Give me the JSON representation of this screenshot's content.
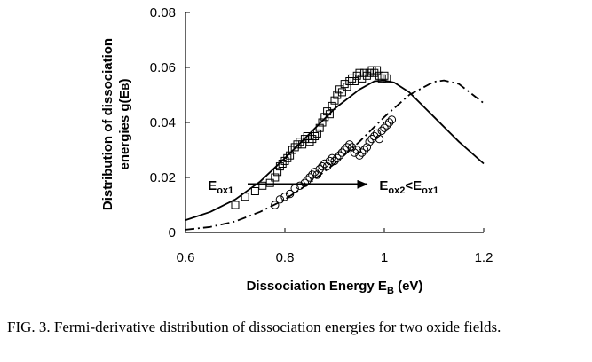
{
  "chart_data": {
    "type": "scatter",
    "xlabel": "Dissociation Energy E",
    "xlabel_sub": "B",
    "xlabel_unit": " (eV)",
    "ylabel_line1": "Distribution of dissociation",
    "ylabel_line2_prefix": "energies g(E",
    "ylabel_line2_sub": "B",
    "ylabel_line2_suffix": ")",
    "xlim": [
      0.6,
      1.2
    ],
    "ylim": [
      0,
      0.08
    ],
    "x_ticks": [
      "0.6",
      "0.8",
      "1",
      "1.2"
    ],
    "y_ticks": [
      "0",
      "0.02",
      "0.04",
      "0.06",
      "0.08"
    ],
    "x_tick_values": [
      0.6,
      0.8,
      1.0,
      1.2
    ],
    "y_tick_values": [
      0,
      0.02,
      0.04,
      0.06,
      0.08
    ],
    "grid": false,
    "legend": "none",
    "series": [
      {
        "marker": "square",
        "points": [
          [
            0.7,
            0.01
          ],
          [
            0.72,
            0.013
          ],
          [
            0.74,
            0.015
          ],
          [
            0.755,
            0.017
          ],
          [
            0.77,
            0.018
          ],
          [
            0.78,
            0.02
          ],
          [
            0.785,
            0.022
          ],
          [
            0.79,
            0.024
          ],
          [
            0.795,
            0.025
          ],
          [
            0.8,
            0.026
          ],
          [
            0.805,
            0.027
          ],
          [
            0.81,
            0.028
          ],
          [
            0.815,
            0.03
          ],
          [
            0.82,
            0.031
          ],
          [
            0.825,
            0.032
          ],
          [
            0.83,
            0.033
          ],
          [
            0.835,
            0.032
          ],
          [
            0.84,
            0.034
          ],
          [
            0.845,
            0.035
          ],
          [
            0.85,
            0.033
          ],
          [
            0.855,
            0.034
          ],
          [
            0.86,
            0.035
          ],
          [
            0.865,
            0.036
          ],
          [
            0.87,
            0.038
          ],
          [
            0.875,
            0.04
          ],
          [
            0.88,
            0.042
          ],
          [
            0.885,
            0.044
          ],
          [
            0.89,
            0.043
          ],
          [
            0.895,
            0.046
          ],
          [
            0.9,
            0.048
          ],
          [
            0.905,
            0.05
          ],
          [
            0.91,
            0.052
          ],
          [
            0.915,
            0.051
          ],
          [
            0.92,
            0.054
          ],
          [
            0.925,
            0.053
          ],
          [
            0.93,
            0.055
          ],
          [
            0.935,
            0.056
          ],
          [
            0.94,
            0.055
          ],
          [
            0.945,
            0.057
          ],
          [
            0.95,
            0.058
          ],
          [
            0.955,
            0.056
          ],
          [
            0.96,
            0.058
          ],
          [
            0.965,
            0.057
          ],
          [
            0.97,
            0.058
          ],
          [
            0.975,
            0.059
          ],
          [
            0.98,
            0.058
          ],
          [
            0.985,
            0.059
          ],
          [
            0.99,
            0.057
          ],
          [
            0.995,
            0.056
          ],
          [
            1.0,
            0.057
          ],
          [
            1.005,
            0.056
          ]
        ]
      },
      {
        "marker": "circle",
        "points": [
          [
            0.78,
            0.01
          ],
          [
            0.79,
            0.012
          ],
          [
            0.8,
            0.013
          ],
          [
            0.81,
            0.014
          ],
          [
            0.82,
            0.016
          ],
          [
            0.83,
            0.017
          ],
          [
            0.84,
            0.018
          ],
          [
            0.845,
            0.019
          ],
          [
            0.85,
            0.02
          ],
          [
            0.855,
            0.021
          ],
          [
            0.86,
            0.022
          ],
          [
            0.865,
            0.021
          ],
          [
            0.87,
            0.023
          ],
          [
            0.875,
            0.024
          ],
          [
            0.88,
            0.025
          ],
          [
            0.885,
            0.024
          ],
          [
            0.89,
            0.026
          ],
          [
            0.895,
            0.027
          ],
          [
            0.9,
            0.026
          ],
          [
            0.905,
            0.027
          ],
          [
            0.91,
            0.028
          ],
          [
            0.915,
            0.029
          ],
          [
            0.92,
            0.03
          ],
          [
            0.925,
            0.031
          ],
          [
            0.93,
            0.032
          ],
          [
            0.935,
            0.031
          ],
          [
            0.94,
            0.029
          ],
          [
            0.945,
            0.03
          ],
          [
            0.95,
            0.028
          ],
          [
            0.955,
            0.029
          ],
          [
            0.96,
            0.03
          ],
          [
            0.965,
            0.031
          ],
          [
            0.97,
            0.033
          ],
          [
            0.975,
            0.034
          ],
          [
            0.98,
            0.035
          ],
          [
            0.985,
            0.036
          ],
          [
            0.99,
            0.034
          ],
          [
            0.995,
            0.037
          ],
          [
            1.0,
            0.038
          ],
          [
            1.005,
            0.039
          ],
          [
            1.01,
            0.04
          ],
          [
            1.015,
            0.041
          ]
        ]
      },
      {
        "line_style": "solid",
        "points": [
          [
            0.6,
            0.0045
          ],
          [
            0.65,
            0.0075
          ],
          [
            0.7,
            0.012
          ],
          [
            0.75,
            0.0185
          ],
          [
            0.8,
            0.027
          ],
          [
            0.85,
            0.036
          ],
          [
            0.9,
            0.045
          ],
          [
            0.95,
            0.052
          ],
          [
            0.98,
            0.055
          ],
          [
            1.0,
            0.0553
          ],
          [
            1.02,
            0.0545
          ],
          [
            1.05,
            0.051
          ],
          [
            1.1,
            0.042
          ],
          [
            1.15,
            0.033
          ],
          [
            1.2,
            0.025
          ]
        ]
      },
      {
        "line_style": "dash-dot",
        "points": [
          [
            0.6,
            0.001
          ],
          [
            0.65,
            0.002
          ],
          [
            0.7,
            0.004
          ],
          [
            0.75,
            0.0075
          ],
          [
            0.8,
            0.012
          ],
          [
            0.85,
            0.018
          ],
          [
            0.9,
            0.025
          ],
          [
            0.95,
            0.033
          ],
          [
            1.0,
            0.042
          ],
          [
            1.05,
            0.05
          ],
          [
            1.1,
            0.0548
          ],
          [
            1.12,
            0.0553
          ],
          [
            1.15,
            0.054
          ],
          [
            1.2,
            0.047
          ]
        ]
      }
    ],
    "annotations": [
      {
        "main": "E",
        "sub": "ox1",
        "x": 0.645,
        "y": 0.0155
      },
      {
        "main": "E",
        "sub": "ox2",
        "main2": "<E",
        "sub2": "ox1",
        "x": 0.99,
        "y": 0.0155
      }
    ],
    "arrow": {
      "from": [
        0.725,
        0.0175
      ],
      "to": [
        0.965,
        0.0175
      ]
    }
  },
  "caption": "FIG. 3. Fermi-derivative distribution of dissociation energies for two oxide fields."
}
